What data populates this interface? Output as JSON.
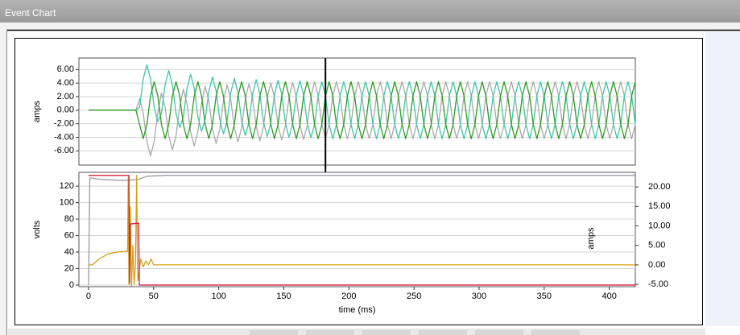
{
  "window_title": "Event Chart",
  "chart_data": [
    {
      "type": "line",
      "ylabel": "amps",
      "x": [
        0,
        36.4,
        39.2,
        42,
        44.8,
        47.6,
        50.4,
        53.2,
        56,
        58.8,
        61.6,
        64.4,
        67.2,
        70,
        72.8,
        75.6,
        78.4,
        81.2,
        84,
        86.8,
        89.6,
        92.4,
        95.2,
        98,
        100.8,
        103.6,
        106.4,
        109.2,
        112,
        114.8,
        117.6,
        120.4,
        123.2,
        126,
        128.8,
        131.6,
        134.4,
        137.2,
        140,
        142.8,
        145.6,
        148.4,
        151.2,
        154,
        156.8,
        159.6,
        162.4,
        165.2,
        168,
        170.8,
        173.6,
        176.4,
        179.2,
        182,
        184.8,
        187.6,
        190.4,
        193.2,
        196,
        198.8,
        201.6,
        204.4,
        207.2,
        210,
        212.8,
        215.6,
        218.4,
        221.2,
        224,
        226.8,
        229.6,
        232.4,
        235.2,
        238,
        240.8,
        243.6,
        246.4,
        249.2,
        252,
        254.8,
        257.6,
        260.4,
        263.2,
        266,
        268.8,
        271.6,
        274.4,
        277.2,
        280,
        282.8,
        285.6,
        288.4,
        291.2,
        294,
        296.8,
        299.6,
        302.4,
        305.2,
        308,
        310.8,
        313.6,
        316.4,
        319.2,
        322,
        324.8,
        327.6,
        330.4,
        333.2,
        336,
        338.8,
        341.6,
        344.4,
        347.2,
        350,
        352.8,
        355.6,
        358.4,
        361.2,
        364,
        366.8,
        369.6,
        372.4,
        375.2,
        378,
        380.8,
        383.6,
        386.4,
        389.2,
        392,
        394.8,
        397.6,
        400.4,
        403.2,
        406,
        408.8,
        411.6,
        414.4,
        417.2,
        420
      ],
      "xlim": [
        -7.4,
        420
      ],
      "ylim": [
        -8.1,
        7.7
      ],
      "yticks": [
        {
          "value": 6,
          "label": "6.00"
        },
        {
          "value": 4,
          "label": "4.00"
        },
        {
          "value": 2,
          "label": "2.00"
        },
        {
          "value": 0,
          "label": "0.00"
        },
        {
          "value": -2,
          "label": "-2.00"
        },
        {
          "value": -4,
          "label": "-4.00"
        },
        {
          "value": -6,
          "label": "-6.00"
        }
      ],
      "grid": true,
      "cursor_x": 182,
      "series": [
        {
          "color": "#a9a9a9",
          "values": [
            0,
            0,
            1.68,
            -0.42,
            -4.62,
            -6.72,
            -4.62,
            -0.42,
            2.55,
            0.45,
            -3.75,
            -5.85,
            -3.75,
            0.45,
            3.11,
            1.01,
            -3.19,
            -5.29,
            -3.19,
            1.01,
            3.49,
            1.39,
            -2.81,
            -4.91,
            -2.81,
            1.39,
            3.73,
            1.63,
            -2.57,
            -4.67,
            -2.57,
            1.63,
            3.89,
            1.79,
            -2.41,
            -4.51,
            -2.41,
            1.79,
            4,
            1.9,
            -2.3,
            -4.4,
            -2.3,
            1.9,
            4.07,
            1.97,
            -2.23,
            -4.33,
            -2.23,
            1.97,
            4.2,
            2.1,
            -2.1,
            -4.2,
            -2.1,
            2.1,
            4.2,
            2.1,
            -2.1,
            -4.2,
            -2.1,
            2.1,
            4.2,
            2.1,
            -2.1,
            -4.2,
            -2.1,
            2.1,
            4.2,
            2.1,
            -2.1,
            -4.2,
            -2.1,
            2.1,
            4.2,
            2.1,
            -2.1,
            -4.2,
            -2.1,
            2.1,
            4.2,
            2.1,
            -2.1,
            -4.2,
            -2.1,
            2.1,
            4.2,
            2.1,
            -2.1,
            -4.2,
            -2.1,
            2.1,
            4.2,
            2.1,
            -2.1,
            -4.2,
            -2.1,
            2.1,
            4.2,
            2.1,
            -2.1,
            -4.2,
            -2.1,
            2.1,
            4.2,
            2.1,
            -2.1,
            -4.2,
            -2.1,
            2.1,
            4.2,
            2.1,
            -2.1,
            -4.2,
            -2.1,
            2.1,
            4.2,
            2.1,
            -2.1,
            -4.2,
            -2.1,
            2.1,
            4.2,
            2.1,
            -2.1,
            -4.2,
            -2.1,
            2.1,
            4.2,
            2.1,
            -2.1,
            -4.2,
            -2.1,
            2.1,
            4.2,
            2.1,
            -2.1,
            -4.2,
            -2.1
          ]
        },
        {
          "color": "#3ec7a6",
          "values": [
            0,
            0,
            0.42,
            4.62,
            6.72,
            4.62,
            0.42,
            -1.68,
            -0.45,
            3.75,
            5.85,
            3.75,
            -0.45,
            -2.55,
            -1.01,
            3.19,
            5.29,
            3.19,
            -1.01,
            -3.11,
            -1.39,
            2.81,
            4.91,
            2.81,
            -1.39,
            -3.49,
            -1.63,
            2.57,
            4.67,
            2.57,
            -1.63,
            -3.73,
            -1.79,
            2.41,
            4.51,
            2.41,
            -1.79,
            -3.89,
            -1.9,
            2.3,
            4.4,
            2.3,
            -1.9,
            -4,
            -1.97,
            2.23,
            4.33,
            2.23,
            -1.97,
            -4.07,
            -2.1,
            2.1,
            4.2,
            2.1,
            -2.1,
            -4.2,
            -2.1,
            2.1,
            4.2,
            2.1,
            -2.1,
            -4.2,
            -2.1,
            2.1,
            4.2,
            2.1,
            -2.1,
            -4.2,
            -2.1,
            2.1,
            4.2,
            2.1,
            -2.1,
            -4.2,
            -2.1,
            2.1,
            4.2,
            2.1,
            -2.1,
            -4.2,
            -2.1,
            2.1,
            4.2,
            2.1,
            -2.1,
            -4.2,
            -2.1,
            2.1,
            4.2,
            2.1,
            -2.1,
            -4.2,
            -2.1,
            2.1,
            4.2,
            2.1,
            -2.1,
            -4.2,
            -2.1,
            2.1,
            4.2,
            2.1,
            -2.1,
            -4.2,
            -2.1,
            2.1,
            4.2,
            2.1,
            -2.1,
            -4.2,
            -2.1,
            2.1,
            4.2,
            2.1,
            -2.1,
            -4.2,
            -2.1,
            2.1,
            4.2,
            2.1,
            -2.1,
            -4.2,
            -2.1,
            2.1,
            4.2,
            2.1,
            -2.1,
            -4.2,
            -2.1,
            2.1,
            4.2,
            2.1,
            -2.1,
            -4.2,
            -2.1,
            2.1,
            4.2,
            2.1,
            -2.1
          ]
        },
        {
          "color": "#2f9a22",
          "values": [
            0,
            0,
            -2.1,
            -4.2,
            -2.1,
            2.1,
            4.2,
            2.1,
            -2.1,
            -4.2,
            -2.1,
            2.1,
            4.2,
            2.1,
            -2.1,
            -4.2,
            -2.1,
            2.1,
            4.2,
            2.1,
            -2.1,
            -4.2,
            -2.1,
            2.1,
            4.2,
            2.1,
            -2.1,
            -4.2,
            -2.1,
            2.1,
            4.2,
            2.1,
            -2.1,
            -4.2,
            -2.1,
            2.1,
            4.2,
            2.1,
            -2.1,
            -4.2,
            -2.1,
            2.1,
            4.2,
            2.1,
            -2.1,
            -4.2,
            -2.1,
            2.1,
            4.2,
            2.1,
            -2.1,
            -4.2,
            -2.1,
            2.1,
            4.2,
            2.1,
            -2.1,
            -4.2,
            -2.1,
            2.1,
            4.2,
            2.1,
            -2.1,
            -4.2,
            -2.1,
            2.1,
            4.2,
            2.1,
            -2.1,
            -4.2,
            -2.1,
            2.1,
            4.2,
            2.1,
            -2.1,
            -4.2,
            -2.1,
            2.1,
            4.2,
            2.1,
            -2.1,
            -4.2,
            -2.1,
            2.1,
            4.2,
            2.1,
            -2.1,
            -4.2,
            -2.1,
            2.1,
            4.2,
            2.1,
            -2.1,
            -4.2,
            -2.1,
            2.1,
            4.2,
            2.1,
            -2.1,
            -4.2,
            -2.1,
            2.1,
            4.2,
            2.1,
            -2.1,
            -4.2,
            -2.1,
            2.1,
            4.2,
            2.1,
            -2.1,
            -4.2,
            -2.1,
            2.1,
            4.2,
            2.1,
            -2.1,
            -4.2,
            -2.1,
            2.1,
            4.2,
            2.1,
            -2.1,
            -4.2,
            -2.1,
            2.1,
            4.2,
            2.1,
            -2.1,
            -4.2,
            -2.1,
            2.1,
            4.2,
            2.1,
            -2.1,
            -4.2,
            -2.1,
            2.1,
            4.2
          ]
        }
      ]
    },
    {
      "type": "line",
      "xlabel": "time (ms)",
      "ylabel": "volts",
      "y2label": "amps",
      "xlim": [
        -7.4,
        420
      ],
      "xticks": [
        0,
        50,
        100,
        150,
        200,
        250,
        300,
        350,
        400
      ],
      "ylim": [
        -2,
        136.7
      ],
      "yticks": [
        0,
        20,
        40,
        60,
        80,
        100,
        120
      ],
      "y2lim": [
        -5.6,
        23.75
      ],
      "y2ticks": [
        {
          "value": 20,
          "label": "20.00"
        },
        {
          "value": 15,
          "label": "15.00"
        },
        {
          "value": 10,
          "label": "10.00"
        },
        {
          "value": 5,
          "label": "5.00"
        },
        {
          "value": 0,
          "label": "0.00"
        },
        {
          "value": -5,
          "label": "-5.00"
        }
      ],
      "grid": true,
      "series": [
        {
          "color": "#9a9aa6",
          "x": [
            0,
            1,
            10,
            25,
            30,
            38,
            45,
            60,
            420
          ],
          "values": [
            0,
            130,
            128,
            127,
            127,
            128,
            132,
            133,
            133
          ]
        },
        {
          "color": "#d4a017",
          "axis": "y2",
          "x": [
            0,
            3,
            8,
            15,
            22,
            30,
            30.5,
            31,
            32,
            33,
            34,
            35,
            36,
            37,
            37.5,
            38,
            40,
            42,
            44,
            46,
            48,
            50,
            420
          ],
          "values": [
            0,
            0,
            1.5,
            2.8,
            3.3,
            3.5,
            22.5,
            -5,
            15,
            -5.5,
            5,
            -5,
            0,
            23,
            0,
            -4,
            1.5,
            -0.5,
            1,
            0,
            1.5,
            0,
            0
          ]
        },
        {
          "color": "#d0203f",
          "x": [
            0,
            31,
            31.5,
            32,
            38,
            38.5,
            39,
            420
          ],
          "values": [
            133,
            133,
            2,
            74,
            75,
            75,
            0,
            0
          ]
        }
      ]
    }
  ]
}
